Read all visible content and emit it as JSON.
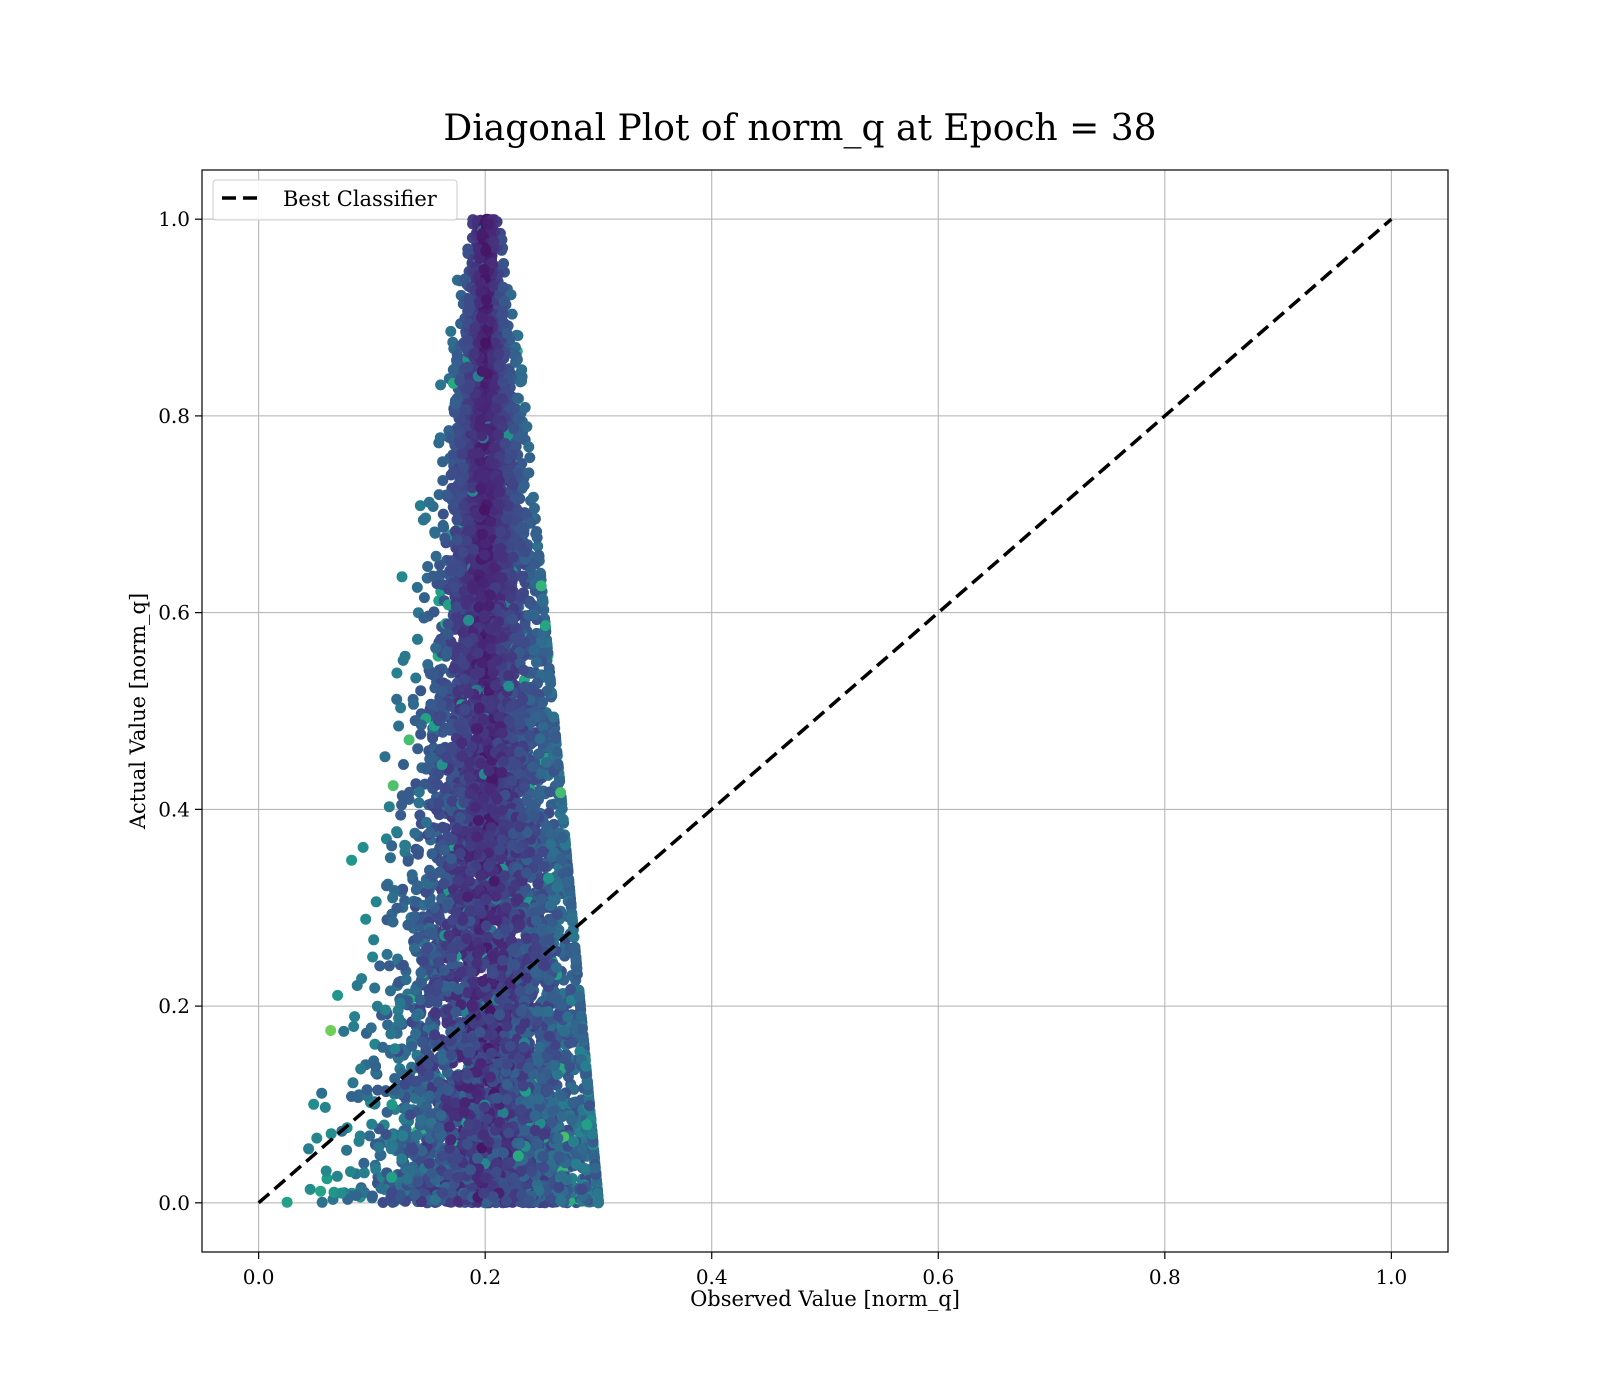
{
  "chart_data": {
    "type": "scatter",
    "title": "Diagonal Plot of norm_q at Epoch = 38",
    "xlabel": "Observed Value [norm_q]",
    "ylabel": "Actual Value [norm_q]",
    "xlim": [
      -0.05,
      1.05
    ],
    "ylim": [
      -0.05,
      1.05
    ],
    "x_ticks": [
      "0.0",
      "0.2",
      "0.4",
      "0.6",
      "0.8",
      "1.0"
    ],
    "y_ticks": [
      "0.0",
      "0.2",
      "0.4",
      "0.6",
      "0.8",
      "1.0"
    ],
    "grid": true,
    "legend": {
      "placement": "top-left",
      "entries": [
        "Best Classifier"
      ]
    },
    "colormap": "viridis",
    "reference_line": {
      "name": "Best Classifier",
      "x": [
        0.0,
        1.0
      ],
      "y": [
        0.0,
        1.0
      ],
      "style": "dashed",
      "color": "#000000"
    },
    "scatter_cloud": {
      "description_of_shape": "dense cloud centered near observed 0.2",
      "x_range_at_y0": [
        0.035,
        0.29
      ],
      "x_range_at_y1": [
        0.19,
        0.21
      ],
      "y_range": [
        0.0,
        1.0
      ]
    }
  }
}
